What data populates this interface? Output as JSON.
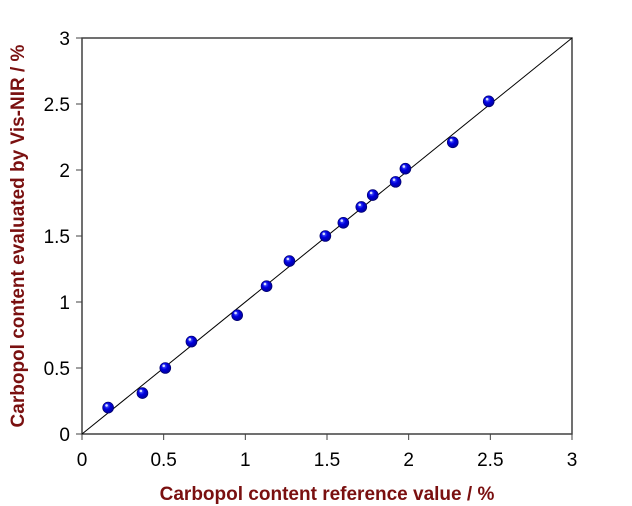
{
  "chart_data": {
    "type": "scatter",
    "title": "",
    "xlabel": "Carbopol content reference value / %",
    "ylabel": "Carbopol content evaluated by Vis-NIR / %",
    "xlim": [
      0,
      3
    ],
    "ylim": [
      0,
      3
    ],
    "xticks": [
      "0",
      "0.5",
      "1",
      "1.5",
      "2",
      "2.5",
      "3"
    ],
    "yticks": [
      "0",
      "0.5",
      "1",
      "1.5",
      "2",
      "2.5",
      "3"
    ],
    "grid": false,
    "legend": null,
    "series": [
      {
        "name": "samples",
        "marker": "circle",
        "color": "#0000e0",
        "x": [
          0.16,
          0.37,
          0.51,
          0.67,
          0.95,
          1.13,
          1.27,
          1.49,
          1.6,
          1.71,
          1.78,
          1.92,
          1.98,
          2.27,
          2.49
        ],
        "y": [
          0.2,
          0.31,
          0.5,
          0.7,
          0.9,
          1.12,
          1.31,
          1.5,
          1.6,
          1.72,
          1.81,
          1.91,
          2.01,
          2.21,
          2.52
        ]
      },
      {
        "name": "y = x reference line",
        "type": "line",
        "color": "#000000",
        "x": [
          0,
          3
        ],
        "y": [
          0,
          3
        ]
      }
    ]
  },
  "colors": {
    "axis_title": "#7a1010",
    "marker": "#0000e0",
    "axis": "#404040"
  }
}
